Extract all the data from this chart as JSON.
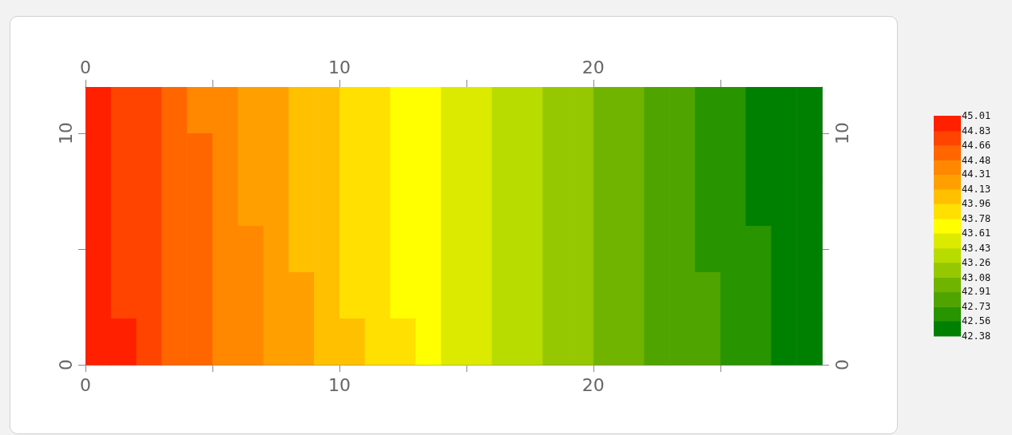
{
  "chart_data": {
    "type": "heatmap",
    "xlim": [
      0,
      29
    ],
    "xticks": [
      0,
      {
        "value": 5,
        "label": null
      },
      10,
      {
        "value": 15,
        "label": null
      },
      20,
      {
        "value": 25,
        "label": null
      }
    ],
    "x2lim": [
      0,
      29
    ],
    "x2ticks": [
      0,
      {
        "value": 5,
        "label": null
      },
      10,
      {
        "value": 15,
        "label": null
      },
      20,
      {
        "value": 25,
        "label": null
      }
    ],
    "ylim": [
      0,
      12
    ],
    "yticks": [
      0,
      {
        "value": 5,
        "label": null
      },
      10
    ],
    "y2lim": [
      0,
      12
    ],
    "y2ticks": [
      0,
      {
        "value": 5,
        "label": null
      },
      10
    ],
    "clim": [
      42.38,
      45.01
    ],
    "cticks": [
      42.38,
      42.56,
      42.73,
      42.91,
      43.08,
      43.26,
      43.43,
      43.61,
      43.78,
      43.96,
      44.13,
      44.31,
      44.48,
      44.66,
      44.83,
      45.01
    ],
    "colors": [
      "#008000",
      "#289400",
      "#50a400",
      "#70b400",
      "#95c800",
      "#b8dc00",
      "#dcea00",
      "#ffff00",
      "#ffe000",
      "#ffc000",
      "#ffa000",
      "#ff8800",
      "#ff6600",
      "#ff4400",
      "#ff2000"
    ],
    "cells": [
      [
        44.87,
        44.77,
        44.67,
        44.57,
        44.47,
        44.38,
        44.28,
        44.19,
        44.1,
        44.0,
        43.91,
        43.82,
        43.73,
        43.64,
        43.55,
        43.46,
        43.37,
        43.29,
        43.2,
        43.12,
        43.03,
        42.95,
        42.87,
        42.79,
        42.7,
        42.62,
        42.55,
        42.47,
        42.39
      ],
      [
        44.88,
        44.78,
        44.68,
        44.59,
        44.49,
        44.39,
        44.3,
        44.2,
        44.11,
        44.02,
        43.92,
        43.83,
        43.74,
        43.65,
        43.56,
        43.47,
        43.38,
        43.3,
        43.21,
        43.13,
        43.04,
        42.96,
        42.88,
        42.79,
        42.71,
        42.63,
        42.55,
        42.47,
        42.4
      ],
      [
        44.9,
        44.8,
        44.7,
        44.6,
        44.5,
        44.41,
        44.31,
        44.21,
        44.12,
        44.03,
        43.93,
        43.84,
        43.75,
        43.66,
        43.57,
        43.48,
        43.4,
        43.31,
        43.22,
        43.14,
        43.05,
        42.97,
        42.89,
        42.8,
        42.72,
        42.64,
        42.56,
        42.48,
        42.4
      ],
      [
        44.91,
        44.81,
        44.71,
        44.61,
        44.52,
        44.42,
        44.32,
        44.23,
        44.13,
        44.04,
        43.95,
        43.85,
        43.76,
        43.67,
        43.58,
        43.49,
        43.41,
        43.32,
        43.23,
        43.15,
        43.06,
        42.98,
        42.89,
        42.81,
        42.73,
        42.65,
        42.57,
        42.49,
        42.41
      ],
      [
        44.93,
        44.83,
        44.73,
        44.63,
        44.53,
        44.43,
        44.34,
        44.24,
        44.15,
        44.05,
        43.96,
        43.87,
        43.77,
        43.68,
        43.59,
        43.51,
        43.42,
        43.33,
        43.24,
        43.16,
        43.07,
        42.99,
        42.9,
        42.82,
        42.74,
        42.66,
        42.58,
        42.5,
        42.42
      ],
      [
        44.94,
        44.84,
        44.74,
        44.64,
        44.54,
        44.45,
        44.35,
        44.25,
        44.16,
        44.06,
        43.97,
        43.88,
        43.79,
        43.7,
        43.61,
        43.52,
        43.43,
        43.34,
        43.25,
        43.17,
        43.08,
        43.0,
        42.91,
        42.83,
        42.75,
        42.67,
        42.59,
        42.51,
        42.43
      ]
    ]
  }
}
